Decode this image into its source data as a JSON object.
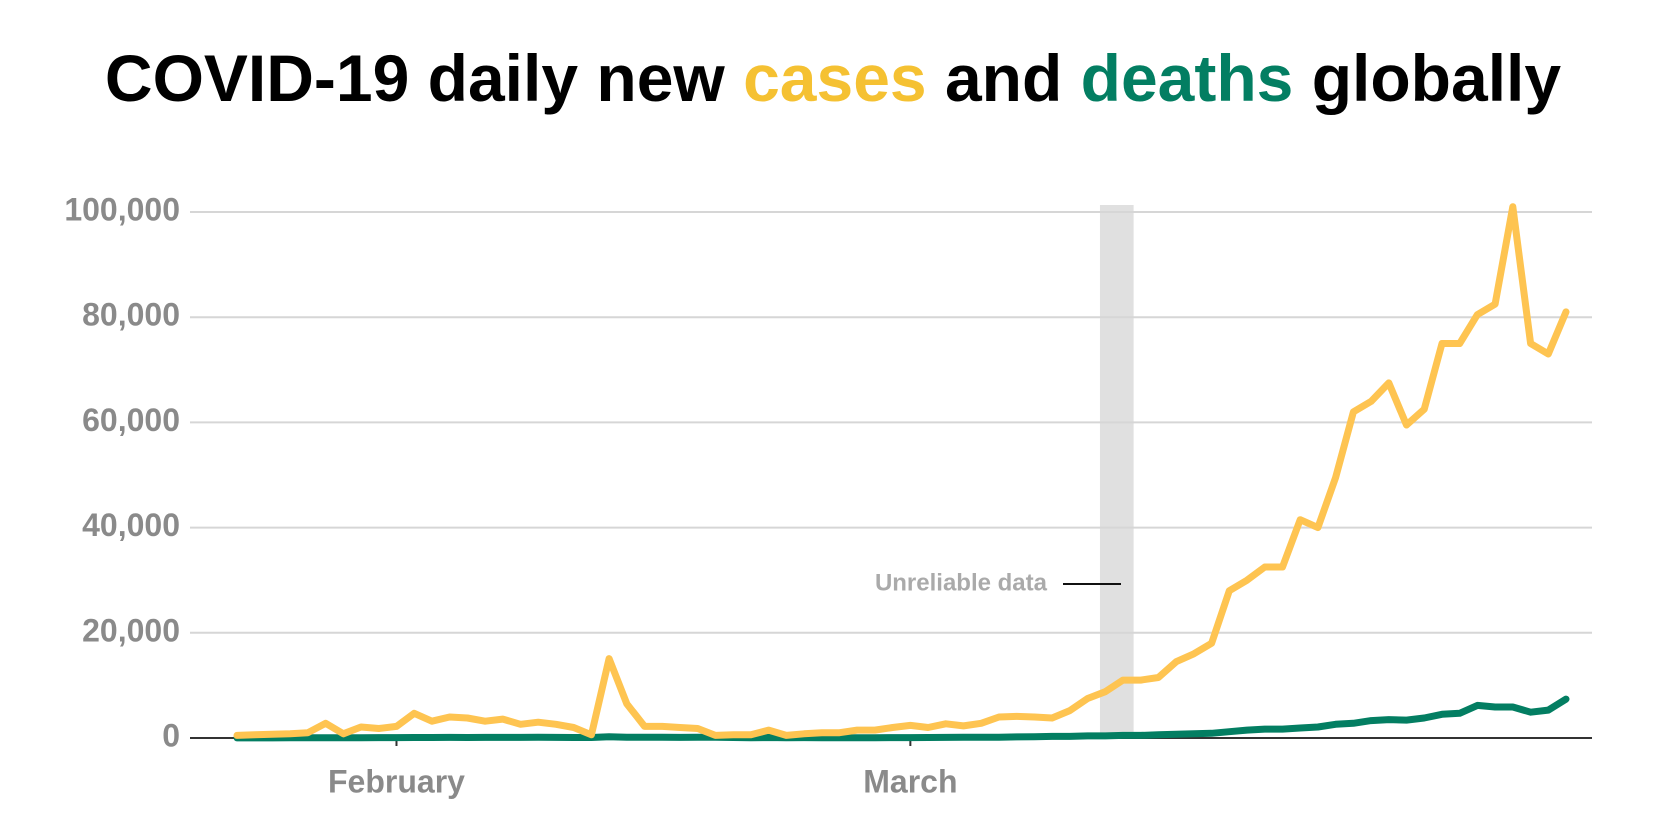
{
  "chart_data": {
    "type": "line",
    "title_parts": [
      {
        "text": "COVID-19 daily new ",
        "color": "#000000"
      },
      {
        "text": "cases",
        "color": "#f5c132"
      },
      {
        "text": " and ",
        "color": "#000000"
      },
      {
        "text": "deaths",
        "color": "#037e62"
      },
      {
        "text": " globally",
        "color": "#000000"
      }
    ],
    "x": [
      0,
      1,
      2,
      3,
      4,
      5,
      6,
      7,
      8,
      9,
      10,
      11,
      12,
      13,
      14,
      15,
      16,
      17,
      18,
      19,
      20,
      21,
      22,
      23,
      24,
      25,
      26,
      27,
      28,
      29,
      30,
      31,
      32,
      33,
      34,
      35,
      36,
      37,
      38,
      39,
      40,
      41,
      42,
      43,
      44,
      45,
      46,
      47,
      48,
      49,
      50,
      51,
      52,
      53,
      54,
      55,
      56,
      57,
      58,
      59,
      60,
      61,
      62,
      63,
      64,
      65,
      66,
      67,
      68,
      69,
      70,
      71,
      72,
      73,
      74,
      75
    ],
    "series": [
      {
        "name": "cases",
        "color": "#fec451",
        "values": [
          500,
          600,
          700,
          800,
          1000,
          2800,
          800,
          2100,
          1800,
          2200,
          4700,
          3200,
          4000,
          3800,
          3200,
          3600,
          2600,
          3000,
          2600,
          2000,
          600,
          15100,
          6500,
          2200,
          2200,
          2000,
          1800,
          500,
          600,
          600,
          1500,
          500,
          800,
          1000,
          1000,
          1500,
          1500,
          2000,
          2400,
          2000,
          2700,
          2300,
          2800,
          4000,
          4100,
          4000,
          3800,
          5200,
          7500,
          8800,
          11000,
          11000,
          11500,
          14500,
          16000,
          18000,
          28000,
          30000,
          32500,
          32500,
          41500,
          40000,
          49500,
          62000,
          64000,
          67500,
          59500,
          62500,
          75000,
          75000,
          80500,
          82500,
          101000,
          75000,
          73000,
          81000
        ]
      },
      {
        "name": "deaths",
        "color": "#037e62",
        "values": [
          20,
          20,
          25,
          30,
          40,
          50,
          60,
          65,
          70,
          85,
          100,
          100,
          110,
          100,
          110,
          120,
          120,
          130,
          110,
          100,
          90,
          250,
          150,
          140,
          130,
          120,
          130,
          130,
          100,
          60,
          100,
          50,
          70,
          60,
          60,
          60,
          60,
          70,
          80,
          100,
          120,
          130,
          140,
          160,
          200,
          250,
          300,
          300,
          400,
          400,
          500,
          500,
          600,
          700,
          800,
          900,
          1200,
          1500,
          1700,
          1700,
          1900,
          2100,
          2600,
          2800,
          3300,
          3500,
          3400,
          3800,
          4500,
          4700,
          6200,
          5900,
          5900,
          4900,
          5300,
          7400
        ]
      }
    ],
    "xlim": [
      0,
      75
    ],
    "xticks": [
      {
        "value": 9,
        "label": "February"
      },
      {
        "value": 38,
        "label": "March"
      }
    ],
    "ylim": [
      0,
      100000
    ],
    "yticks": [
      0,
      {
        "value": 20000,
        "label": "20,000"
      },
      {
        "value": 40000,
        "label": "40,000"
      },
      {
        "value": 60000,
        "label": "60,000"
      },
      {
        "value": 80000,
        "label": "80,000"
      },
      {
        "value": 100000,
        "label": "100,000"
      }
    ],
    "grid": true,
    "annotation": {
      "text": "Unreliable data",
      "band": [
        48.7,
        50.6
      ],
      "color": "#e0e0e0"
    }
  }
}
